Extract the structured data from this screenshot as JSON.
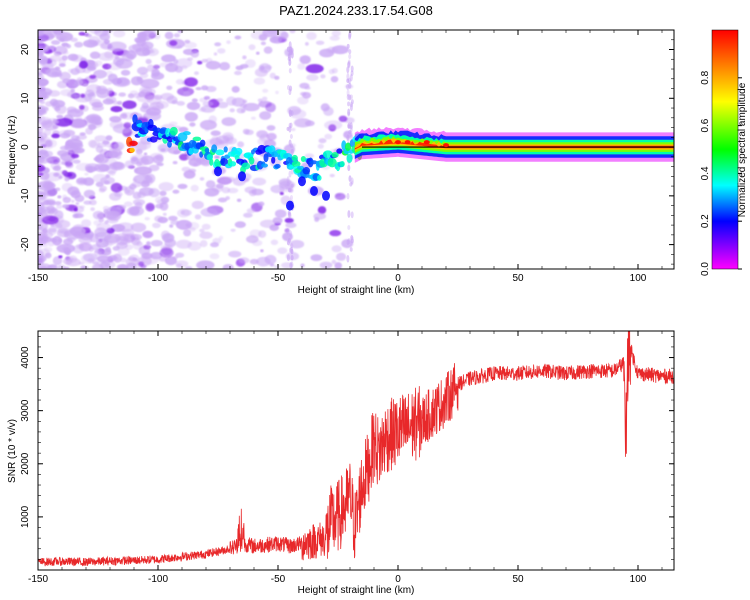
{
  "title": "PAZ1.2024.233.17.54.G08",
  "chart_data": [
    {
      "type": "heatmap",
      "xlabel": "Height of straight line (km)",
      "ylabel": "Frequency (Hz)",
      "xlim": [
        -150,
        115
      ],
      "ylim": [
        -25,
        24
      ],
      "x_ticks": [
        -150,
        -100,
        -50,
        0,
        50,
        100
      ],
      "y_ticks": [
        -20,
        -10,
        0,
        10,
        20
      ],
      "grid": false,
      "colorbar": {
        "label": "Normalized spectral amplitude",
        "range": [
          0,
          1
        ],
        "ticks": [
          "0.0",
          "0.2",
          "0.4",
          "0.6",
          "0.8"
        ],
        "colormap": [
          "#ff00ff",
          "#0000ff",
          "#00ffff",
          "#00ff00",
          "#ffff00",
          "#ff0000"
        ]
      },
      "ridge_trace": {
        "description_points": [
          {
            "x": -110,
            "y": 4,
            "amplitude": 0.25
          },
          {
            "x": -95,
            "y": 2,
            "amplitude": 0.3
          },
          {
            "x": -85,
            "y": 1,
            "amplitude": 0.35
          },
          {
            "x": -75,
            "y": -2,
            "amplitude": 0.3
          },
          {
            "x": -65,
            "y": -3,
            "amplitude": 0.3
          },
          {
            "x": -55,
            "y": -2,
            "amplitude": 0.3
          },
          {
            "x": -45,
            "y": -3,
            "amplitude": 0.3
          },
          {
            "x": -35,
            "y": -5,
            "amplitude": 0.3
          },
          {
            "x": -25,
            "y": -2,
            "amplitude": 0.3
          },
          {
            "x": -15,
            "y": 0.5,
            "amplitude": 0.45
          },
          {
            "x": 0,
            "y": 1,
            "amplitude": 0.6
          },
          {
            "x": 10,
            "y": 0.5,
            "amplitude": 0.75
          },
          {
            "x": 20,
            "y": 0,
            "amplitude": 0.85
          },
          {
            "x": 60,
            "y": 0,
            "amplitude": 0.95
          },
          {
            "x": 100,
            "y": 0,
            "amplitude": 0.9
          },
          {
            "x": 115,
            "y": 0,
            "amplitude": 0.85
          }
        ]
      }
    },
    {
      "type": "line",
      "xlabel": "Height of straight line (km)",
      "ylabel": "SNR (10 * v/v)",
      "xlim": [
        -150,
        115
      ],
      "ylim": [
        0,
        4500
      ],
      "x_ticks": [
        -150,
        -100,
        -50,
        0,
        50,
        100
      ],
      "y_ticks": [
        1000,
        2000,
        3000,
        4000
      ],
      "grid": false,
      "series": [
        {
          "color": "#e8282a",
          "x": [
            -150,
            -140,
            -130,
            -120,
            -110,
            -100,
            -90,
            -80,
            -70,
            -65,
            -60,
            -50,
            -45,
            -40,
            -35,
            -30,
            -28,
            -25,
            -22,
            -20,
            -18,
            -15,
            -12,
            -10,
            -8,
            -5,
            0,
            5,
            10,
            15,
            20,
            25,
            30,
            40,
            50,
            60,
            70,
            80,
            90,
            94,
            95,
            96,
            100,
            110,
            115
          ],
          "y": [
            150,
            160,
            150,
            170,
            180,
            200,
            250,
            300,
            400,
            500,
            450,
            500,
            450,
            500,
            550,
            600,
            900,
            1000,
            1200,
            1400,
            800,
            1600,
            2000,
            2400,
            2200,
            2500,
            2600,
            2700,
            2800,
            3000,
            3200,
            3500,
            3600,
            3700,
            3700,
            3750,
            3700,
            3750,
            3750,
            3900,
            2600,
            4300,
            3700,
            3650,
            3650
          ]
        }
      ]
    }
  ]
}
